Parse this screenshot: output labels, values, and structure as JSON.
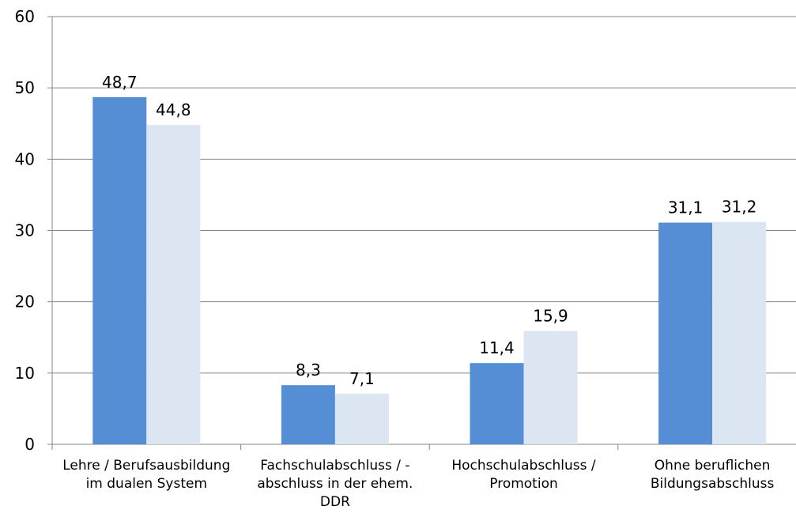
{
  "chart_data": {
    "type": "bar",
    "categories": [
      "Lehre / Berufsausbildung im dualen System",
      "Fachschulabschluss / -abschluss in der ehem. DDR",
      "Hochschulabschluss / Promotion",
      "Ohne beruflichen Bildungsabschluss"
    ],
    "series": [
      {
        "color": "#558ed5",
        "values": [
          48.7,
          8.3,
          11.4,
          31.1
        ],
        "value_labels": [
          "48,7",
          "8,3",
          "11,4",
          "31,1"
        ]
      },
      {
        "color": "#dce6f2",
        "values": [
          44.8,
          7.1,
          15.9,
          31.2
        ],
        "value_labels": [
          "44,8",
          "7,1",
          "15,9",
          "31,2"
        ]
      }
    ],
    "ylim": [
      0,
      60
    ],
    "yticks": [
      0,
      10,
      20,
      30,
      40,
      50,
      60
    ],
    "grid": true
  }
}
